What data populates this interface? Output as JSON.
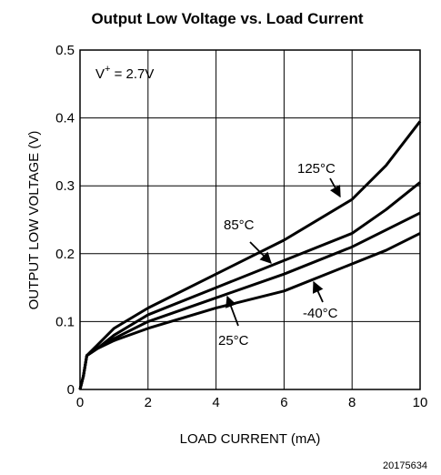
{
  "chart_data": {
    "type": "line",
    "title": "Output Low Voltage vs. Load Current",
    "xlabel": "LOAD CURRENT (mA)",
    "ylabel": "OUTPUT LOW VOLTAGE (V)",
    "annotation": [
      "V",
      "+",
      " = 2.7V"
    ],
    "figure_id": "20175634",
    "xlim": [
      0,
      10
    ],
    "ylim": [
      0,
      0.5
    ],
    "xticks": [
      0,
      2,
      4,
      6,
      8,
      10
    ],
    "yticks": [
      0,
      0.1,
      0.2,
      0.3,
      0.4,
      0.5
    ],
    "grid": true,
    "x": [
      0,
      0.1,
      0.2,
      0.5,
      1,
      2,
      4,
      6,
      8,
      9,
      10
    ],
    "series": [
      {
        "name": "125°C",
        "color": "#000000",
        "values": [
          0,
          0.02,
          0.05,
          0.065,
          0.09,
          0.12,
          0.17,
          0.22,
          0.28,
          0.33,
          0.395
        ]
      },
      {
        "name": "85°C",
        "color": "#000000",
        "values": [
          0,
          0.02,
          0.05,
          0.06,
          0.08,
          0.11,
          0.15,
          0.19,
          0.23,
          0.265,
          0.305
        ]
      },
      {
        "name": "25°C",
        "color": "#000000",
        "values": [
          0,
          0.02,
          0.05,
          0.06,
          0.075,
          0.1,
          0.135,
          0.17,
          0.21,
          0.235,
          0.26
        ]
      },
      {
        "name": "-40°C",
        "color": "#000000",
        "values": [
          0,
          0.02,
          0.05,
          0.06,
          0.072,
          0.09,
          0.12,
          0.145,
          0.185,
          0.205,
          0.23
        ]
      }
    ]
  }
}
